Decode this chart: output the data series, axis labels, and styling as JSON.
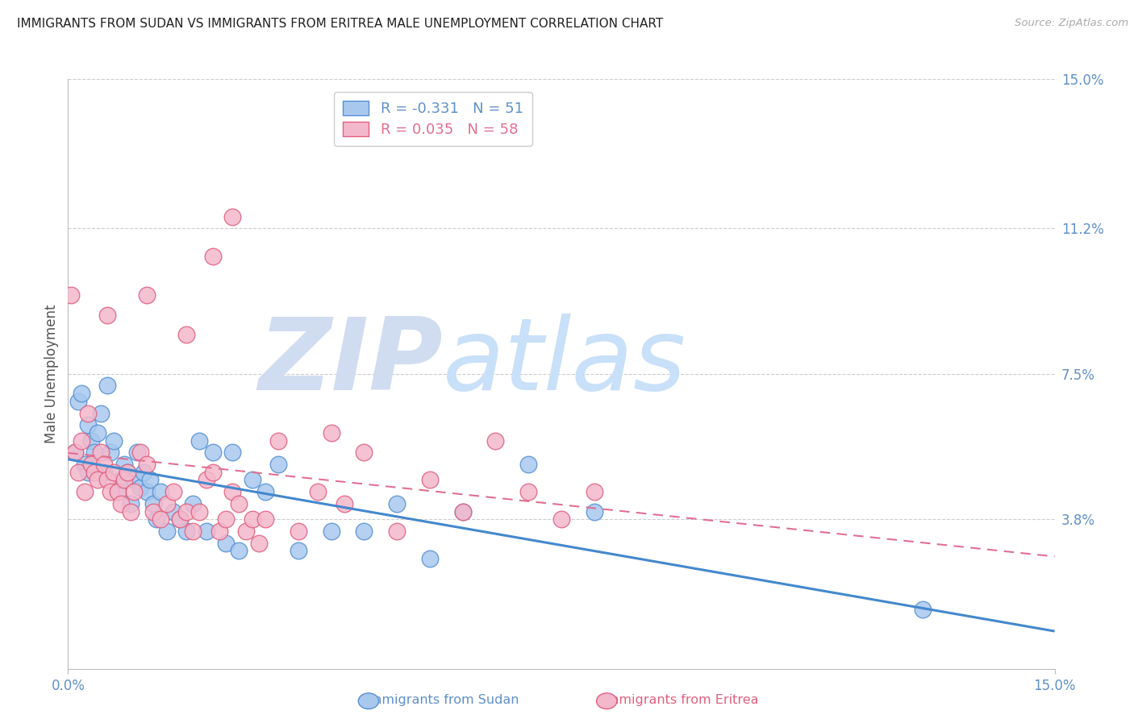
{
  "title": "IMMIGRANTS FROM SUDAN VS IMMIGRANTS FROM ERITREA MALE UNEMPLOYMENT CORRELATION CHART",
  "source": "Source: ZipAtlas.com",
  "ylabel": "Male Unemployment",
  "xlim": [
    0.0,
    15.0
  ],
  "ylim": [
    0.0,
    15.0
  ],
  "ytick_values_right": [
    15.0,
    11.2,
    7.5,
    3.8
  ],
  "gridline_values": [
    15.0,
    11.2,
    7.5,
    3.8
  ],
  "sudan_color": "#a8c8ee",
  "eritrea_color": "#f4b8cc",
  "sudan_edge_color": "#5590d0",
  "eritrea_edge_color": "#e06080",
  "sudan_line_color": "#4488cc",
  "eritrea_line_color": "#e07090",
  "sudan_R": -0.331,
  "sudan_N": 51,
  "eritrea_R": 0.035,
  "eritrea_N": 58,
  "watermark_zip_color": "#d0dcf0",
  "watermark_atlas_color": "#c8e0f8",
  "title_color": "#222222",
  "axis_color": "#6090c8",
  "sudan_x": [
    0.1,
    0.15,
    0.2,
    0.25,
    0.3,
    0.35,
    0.4,
    0.45,
    0.5,
    0.55,
    0.6,
    0.65,
    0.7,
    0.75,
    0.8,
    0.85,
    0.9,
    0.95,
    1.0,
    1.05,
    1.1,
    1.15,
    1.2,
    1.25,
    1.3,
    1.35,
    1.4,
    1.5,
    1.6,
    1.7,
    1.8,
    1.9,
    2.0,
    2.1,
    2.2,
    2.4,
    2.5,
    2.6,
    2.8,
    3.0,
    3.2,
    3.5,
    4.0,
    4.5,
    5.0,
    5.5,
    6.0,
    7.0,
    8.0,
    13.0,
    0.3
  ],
  "sudan_y": [
    5.5,
    6.8,
    7.0,
    5.2,
    6.2,
    5.8,
    5.5,
    6.0,
    6.5,
    5.0,
    7.2,
    5.5,
    5.8,
    4.5,
    4.8,
    5.2,
    5.0,
    4.2,
    4.8,
    5.5,
    4.6,
    5.0,
    4.5,
    4.8,
    4.2,
    3.8,
    4.5,
    3.5,
    4.0,
    3.8,
    3.5,
    4.2,
    5.8,
    3.5,
    5.5,
    3.2,
    5.5,
    3.0,
    4.8,
    4.5,
    5.2,
    3.0,
    3.5,
    3.5,
    4.2,
    2.8,
    4.0,
    5.2,
    4.0,
    1.5,
    5.0
  ],
  "eritrea_x": [
    0.05,
    0.1,
    0.15,
    0.2,
    0.25,
    0.3,
    0.35,
    0.4,
    0.45,
    0.5,
    0.55,
    0.6,
    0.65,
    0.7,
    0.75,
    0.8,
    0.85,
    0.9,
    0.95,
    1.0,
    1.1,
    1.2,
    1.3,
    1.4,
    1.5,
    1.6,
    1.7,
    1.8,
    1.9,
    2.0,
    2.1,
    2.2,
    2.3,
    2.4,
    2.5,
    2.6,
    2.7,
    2.8,
    2.9,
    3.0,
    3.2,
    3.5,
    3.8,
    4.0,
    4.2,
    4.5,
    5.0,
    5.5,
    6.0,
    6.5,
    7.0,
    7.5,
    8.0,
    2.5,
    2.2,
    1.8,
    1.2,
    0.6
  ],
  "eritrea_y": [
    9.5,
    5.5,
    5.0,
    5.8,
    4.5,
    6.5,
    5.2,
    5.0,
    4.8,
    5.5,
    5.2,
    4.8,
    4.5,
    5.0,
    4.5,
    4.2,
    4.8,
    5.0,
    4.0,
    4.5,
    5.5,
    5.2,
    4.0,
    3.8,
    4.2,
    4.5,
    3.8,
    4.0,
    3.5,
    4.0,
    4.8,
    5.0,
    3.5,
    3.8,
    4.5,
    4.2,
    3.5,
    3.8,
    3.2,
    3.8,
    5.8,
    3.5,
    4.5,
    6.0,
    4.2,
    5.5,
    3.5,
    4.8,
    4.0,
    5.8,
    4.5,
    3.8,
    4.5,
    11.5,
    10.5,
    8.5,
    9.5,
    9.0
  ]
}
